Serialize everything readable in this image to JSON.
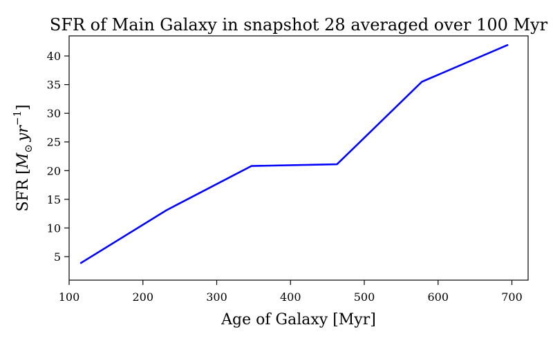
{
  "chart_data": {
    "type": "line",
    "title": "SFR of Main Galaxy in snapshot 28 averaged over 100 Myr",
    "xlabel": "Age of Galaxy [Myr]",
    "ylabel_text": "SFR [",
    "ylabel_math": "M",
    "ylabel_math_sub": "⊙",
    "ylabel_math_unit": "yr",
    "ylabel_math_exp": "−1",
    "ylabel_close": "]",
    "xlim": [
      100,
      722
    ],
    "ylim": [
      0.9,
      43.5
    ],
    "x_ticks": [
      100,
      200,
      300,
      400,
      500,
      600,
      700
    ],
    "y_ticks": [
      5,
      10,
      15,
      20,
      25,
      30,
      35,
      40
    ],
    "grid": false,
    "series": [
      {
        "color": "#0000ff",
        "x": [
          116,
          232,
          347,
          463,
          578,
          694
        ],
        "y": [
          3.9,
          13.1,
          20.8,
          21.1,
          35.5,
          41.9
        ]
      }
    ]
  }
}
